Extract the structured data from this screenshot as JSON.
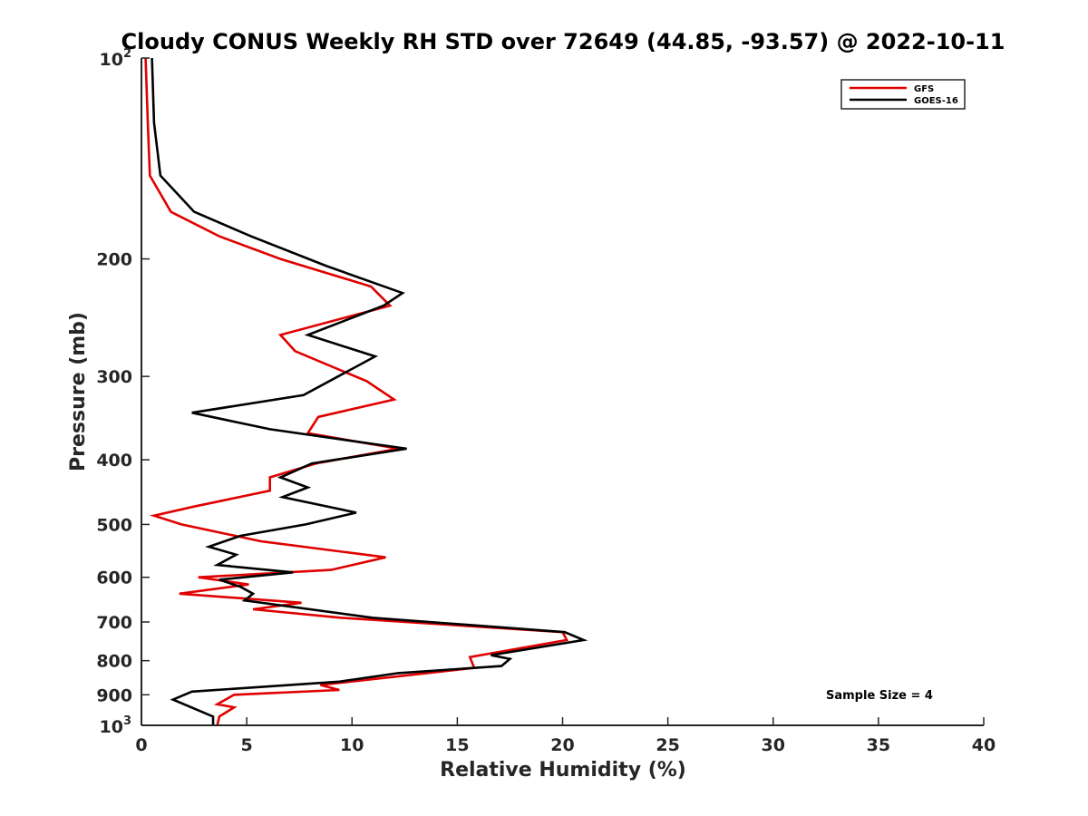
{
  "chart_data": {
    "type": "line",
    "title": "Cloudy CONUS Weekly RH STD over 72649 (44.85, -93.57) @ 2022-10-11",
    "xlabel": "Relative Humidity (%)",
    "ylabel": "Pressure (mb)",
    "xlim": [
      0,
      40
    ],
    "ylim": [
      100,
      1000
    ],
    "y_scale": "log",
    "y_reversed": true,
    "grid": false,
    "legend_position": "top-right",
    "x_ticks": [
      "0",
      "5",
      "10",
      "15",
      "20",
      "25",
      "30",
      "35",
      "40"
    ],
    "x_tick_values": [
      0,
      5,
      10,
      15,
      20,
      25,
      30,
      35,
      40
    ],
    "y_ticks": [
      {
        "base": "10",
        "exp": "2",
        "value": 100
      },
      {
        "base": "200",
        "exp": "",
        "value": 200
      },
      {
        "base": "300",
        "exp": "",
        "value": 300
      },
      {
        "base": "400",
        "exp": "",
        "value": 400
      },
      {
        "base": "500",
        "exp": "",
        "value": 500
      },
      {
        "base": "600",
        "exp": "",
        "value": 600
      },
      {
        "base": "700",
        "exp": "",
        "value": 700
      },
      {
        "base": "800",
        "exp": "",
        "value": 800
      },
      {
        "base": "900",
        "exp": "",
        "value": 900
      },
      {
        "base": "10",
        "exp": "3",
        "value": 1000
      }
    ],
    "annotation": "Sample Size = 4",
    "series": [
      {
        "name": "GFS",
        "color": "#e00000",
        "points": [
          [
            0.2,
            100
          ],
          [
            0.3,
            125
          ],
          [
            0.4,
            150
          ],
          [
            1.4,
            170
          ],
          [
            3.7,
            185
          ],
          [
            6.6,
            200
          ],
          [
            10.9,
            220
          ],
          [
            11.8,
            235
          ],
          [
            6.6,
            260
          ],
          [
            7.3,
            275
          ],
          [
            10.7,
            305
          ],
          [
            12.0,
            325
          ],
          [
            8.4,
            345
          ],
          [
            7.9,
            365
          ],
          [
            12.2,
            385
          ],
          [
            8.3,
            405
          ],
          [
            6.1,
            425
          ],
          [
            6.1,
            445
          ],
          [
            2.5,
            470
          ],
          [
            0.6,
            485
          ],
          [
            1.9,
            500
          ],
          [
            5.7,
            530
          ],
          [
            11.6,
            560
          ],
          [
            9.0,
            585
          ],
          [
            2.7,
            600
          ],
          [
            5.1,
            615
          ],
          [
            1.8,
            635
          ],
          [
            7.6,
            655
          ],
          [
            5.3,
            670
          ],
          [
            9.5,
            690
          ],
          [
            20.0,
            725
          ],
          [
            20.2,
            745
          ],
          [
            15.6,
            790
          ],
          [
            15.8,
            820
          ],
          [
            8.5,
            870
          ],
          [
            9.4,
            885
          ],
          [
            4.4,
            900
          ],
          [
            3.6,
            930
          ],
          [
            4.4,
            940
          ],
          [
            3.7,
            970
          ],
          [
            3.6,
            1000
          ]
        ]
      },
      {
        "name": "GOES-16",
        "color": "#000000",
        "points": [
          [
            0.5,
            100
          ],
          [
            0.6,
            125
          ],
          [
            0.9,
            150
          ],
          [
            2.5,
            170
          ],
          [
            5.2,
            185
          ],
          [
            8.8,
            205
          ],
          [
            12.4,
            225
          ],
          [
            11.5,
            235
          ],
          [
            7.9,
            260
          ],
          [
            11.1,
            280
          ],
          [
            7.7,
            320
          ],
          [
            2.4,
            340
          ],
          [
            6.1,
            360
          ],
          [
            12.6,
            385
          ],
          [
            8.1,
            405
          ],
          [
            6.6,
            425
          ],
          [
            7.9,
            440
          ],
          [
            6.7,
            455
          ],
          [
            10.2,
            480
          ],
          [
            7.8,
            500
          ],
          [
            4.7,
            520
          ],
          [
            3.2,
            540
          ],
          [
            4.5,
            555
          ],
          [
            3.6,
            575
          ],
          [
            7.2,
            590
          ],
          [
            3.7,
            605
          ],
          [
            4.7,
            620
          ],
          [
            5.3,
            635
          ],
          [
            4.9,
            650
          ],
          [
            11.0,
            690
          ],
          [
            20.1,
            725
          ],
          [
            21.0,
            745
          ],
          [
            16.6,
            785
          ],
          [
            17.5,
            795
          ],
          [
            17.1,
            815
          ],
          [
            12.2,
            835
          ],
          [
            9.4,
            860
          ],
          [
            2.4,
            890
          ],
          [
            1.5,
            915
          ],
          [
            3.4,
            970
          ],
          [
            3.4,
            1000
          ]
        ]
      }
    ]
  }
}
